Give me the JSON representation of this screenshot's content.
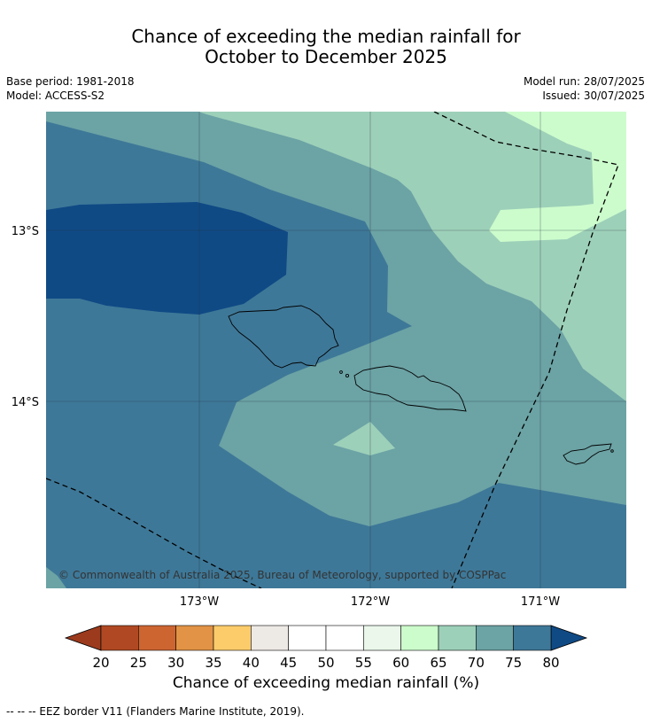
{
  "title_line1": "Chance of exceeding the median rainfall for",
  "title_line2": "October to December 2025",
  "meta": {
    "base_period": "Base period: 1981-2018",
    "model": "Model: ACCESS-S2",
    "model_run": "Model run: 28/07/2025",
    "issued": "Issued: 30/07/2025"
  },
  "map": {
    "lat_labels": [
      "13°S",
      "14°S"
    ],
    "lon_labels": [
      "173°W",
      "172°W",
      "171°W"
    ],
    "copyright": "© Commonwealth of Australia 2025, Bureau of Meteorology, supported by COSPPac",
    "region_colors": {
      "dark_blue": "#104a85",
      "blue": "#3e7898",
      "teal": "#6ca3a5",
      "light_green": "#9dd0b9",
      "pale_green": "#ccfccc"
    }
  },
  "colorbar": {
    "ticks": [
      "20",
      "25",
      "30",
      "35",
      "40",
      "45",
      "50",
      "55",
      "60",
      "65",
      "70",
      "75",
      "80"
    ],
    "colors": [
      "#b04923",
      "#cd6531",
      "#e29346",
      "#fccc6b",
      "#ede9e5",
      "#ffffff",
      "#ffffff",
      "#eaf7ea",
      "#ccfccc",
      "#9dd0b9",
      "#6ca3a5",
      "#3e7898"
    ],
    "under_color": "#9c3a1d",
    "over_color": "#104a85",
    "label": "Chance of exceeding median rainfall (%)"
  },
  "footnote": "--  --  -- EEZ border V11 (Flanders Marine Institute, 2019)."
}
